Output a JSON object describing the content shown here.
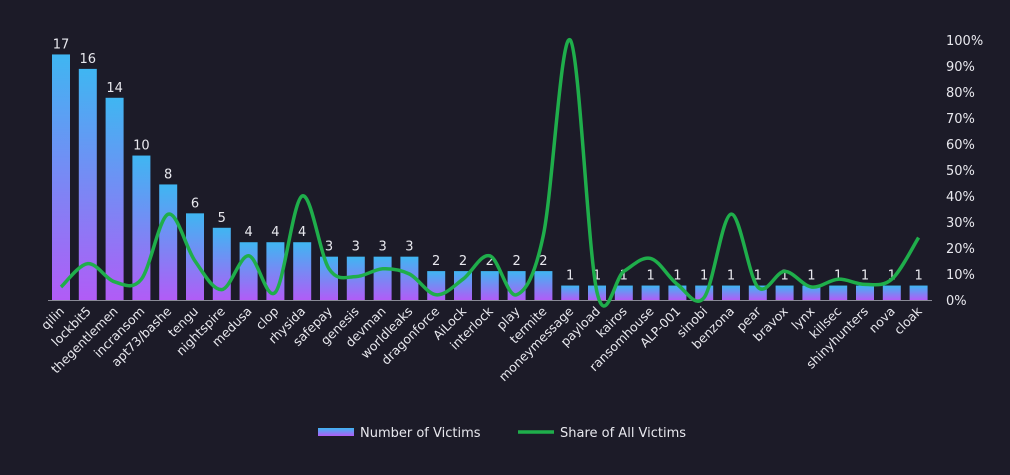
{
  "chart_data": {
    "type": "bar+line",
    "title": "",
    "categories": [
      "qilin",
      "lockbit5",
      "thegentlemen",
      "incransom",
      "apt73/bashe",
      "tengu",
      "nightspire",
      "medusa",
      "clop",
      "rhysida",
      "safepay",
      "genesis",
      "devman",
      "worldleaks",
      "dragonforce",
      "AiLock",
      "interlock",
      "play",
      "termite",
      "moneymessage",
      "payload",
      "kairos",
      "ransomhouse",
      "ALP-001",
      "sinobi",
      "benzona",
      "pear",
      "bravox",
      "lynx",
      "killsec",
      "shinyhunters",
      "nova",
      "cloak"
    ],
    "series": [
      {
        "name": "Number of Victims",
        "type": "bar",
        "axis": "left",
        "values": [
          17,
          16,
          14,
          10,
          8,
          6,
          5,
          4,
          4,
          4,
          3,
          3,
          3,
          3,
          2,
          2,
          2,
          2,
          2,
          1,
          1,
          1,
          1,
          1,
          1,
          1,
          1,
          1,
          1,
          1,
          1,
          1,
          1
        ]
      },
      {
        "name": "Share of All Victims",
        "type": "line",
        "axis": "right",
        "values": [
          5,
          14,
          7,
          8,
          33,
          15,
          4,
          17,
          3,
          40,
          12,
          9,
          12,
          10,
          2,
          8,
          17,
          2,
          25,
          100,
          3,
          11,
          16,
          6,
          1,
          33,
          5,
          11,
          5,
          8,
          6,
          8,
          24
        ]
      }
    ],
    "left_ylim": [
      0,
      18
    ],
    "right_ylim": [
      0,
      100
    ],
    "right_ticks": [
      "0%",
      "10%",
      "20%",
      "30%",
      "40%",
      "50%",
      "60%",
      "70%",
      "80%",
      "90%",
      "100%"
    ],
    "legend_position": "bottom",
    "colors": {
      "bar_top": "#3fb6f2",
      "bar_bottom": "#b15cf6",
      "line": "#1fae4b",
      "background": "#1c1b28"
    }
  }
}
